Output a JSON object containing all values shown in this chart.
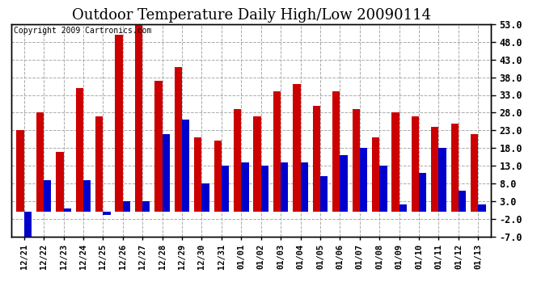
{
  "title": "Outdoor Temperature Daily High/Low 20090114",
  "copyright": "Copyright 2009 Cartronics.com",
  "dates": [
    "12/21",
    "12/22",
    "12/23",
    "12/24",
    "12/25",
    "12/26",
    "12/27",
    "12/28",
    "12/29",
    "12/30",
    "12/31",
    "01/01",
    "01/02",
    "01/03",
    "01/04",
    "01/05",
    "01/06",
    "01/07",
    "01/08",
    "01/09",
    "01/10",
    "01/11",
    "01/12",
    "01/13"
  ],
  "highs": [
    23,
    28,
    17,
    35,
    27,
    50,
    54,
    37,
    41,
    21,
    20,
    29,
    27,
    34,
    36,
    30,
    34,
    29,
    21,
    28,
    27,
    24,
    25,
    22
  ],
  "lows": [
    -8,
    9,
    1,
    9,
    -1,
    3,
    3,
    22,
    26,
    8,
    13,
    14,
    13,
    14,
    14,
    10,
    16,
    18,
    13,
    2,
    11,
    18,
    6,
    2
  ],
  "high_color": "#cc0000",
  "low_color": "#0000cc",
  "ylim_min": -7,
  "ylim_max": 53,
  "yticks": [
    -7.0,
    -2.0,
    3.0,
    8.0,
    13.0,
    18.0,
    23.0,
    28.0,
    33.0,
    38.0,
    43.0,
    48.0,
    53.0
  ],
  "grid_color": "#aaaaaa",
  "plot_bg_color": "#ffffff",
  "fig_bg_color": "#ffffff",
  "bar_width": 0.38,
  "title_fontsize": 13,
  "copyright_fontsize": 7
}
